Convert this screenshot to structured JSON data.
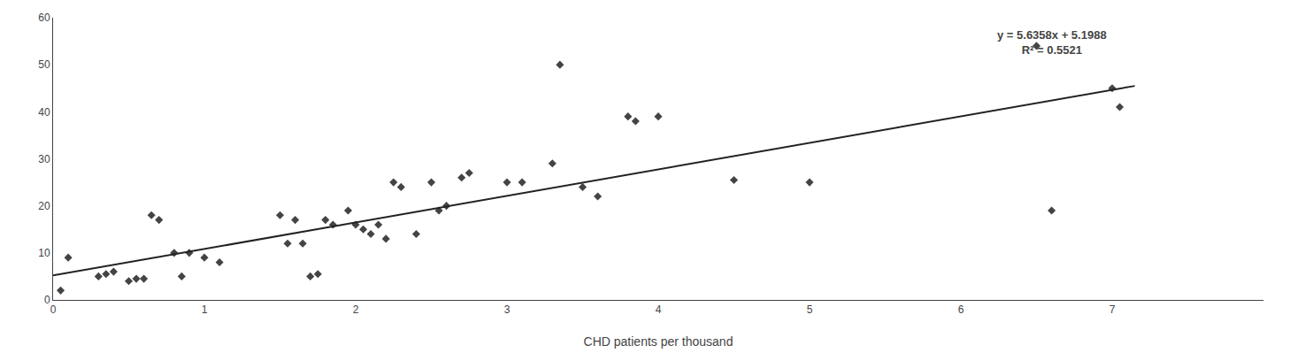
{
  "chart_data": {
    "type": "scatter",
    "xlabel": "CHD patients per thousand",
    "xlim": [
      0,
      8
    ],
    "ylim": [
      0,
      60
    ],
    "xticks": [
      0,
      1,
      2,
      3,
      4,
      5,
      6,
      7
    ],
    "yticks": [
      0,
      10,
      20,
      30,
      40,
      50,
      60
    ],
    "grid": false,
    "annotations": [
      "y = 5.6358x + 5.1988",
      "R² = 0.5521"
    ],
    "series": [
      {
        "type": "scatter",
        "color": "#444444",
        "marker": "diamond",
        "x": [
          0.05,
          0.1,
          0.3,
          0.35,
          0.4,
          0.5,
          0.55,
          0.6,
          0.65,
          0.7,
          0.8,
          0.85,
          0.9,
          1.0,
          1.1,
          1.5,
          1.55,
          1.6,
          1.65,
          1.7,
          1.75,
          1.8,
          1.85,
          1.95,
          2.0,
          2.05,
          2.1,
          2.15,
          2.2,
          2.25,
          2.3,
          2.4,
          2.5,
          2.55,
          2.6,
          2.7,
          2.75,
          3.0,
          3.1,
          3.3,
          3.35,
          3.5,
          3.6,
          3.8,
          3.85,
          4.0,
          4.5,
          5.0,
          6.5,
          6.6,
          7.0,
          7.05
        ],
        "values": [
          2.0,
          9.0,
          5.0,
          5.5,
          6.0,
          4.0,
          4.5,
          4.5,
          18.0,
          17.0,
          10.0,
          5.0,
          10.0,
          9.0,
          8.0,
          18.0,
          12.0,
          17.0,
          12.0,
          5.0,
          5.5,
          17.0,
          16.0,
          19.0,
          16.0,
          15.0,
          14.0,
          16.0,
          13.0,
          25.0,
          24.0,
          14.0,
          25.0,
          19.0,
          20.0,
          26.0,
          27.0,
          25.0,
          25.0,
          29.0,
          50.0,
          24.0,
          22.0,
          39.0,
          38.0,
          39.0,
          25.5,
          25.0,
          54.0,
          19.0,
          45.0,
          41.0
        ]
      },
      {
        "type": "line",
        "color": "#222222",
        "line_style": "solid",
        "x": [
          0.0,
          7.15
        ],
        "values": [
          5.1988,
          45.49477
        ]
      }
    ]
  }
}
